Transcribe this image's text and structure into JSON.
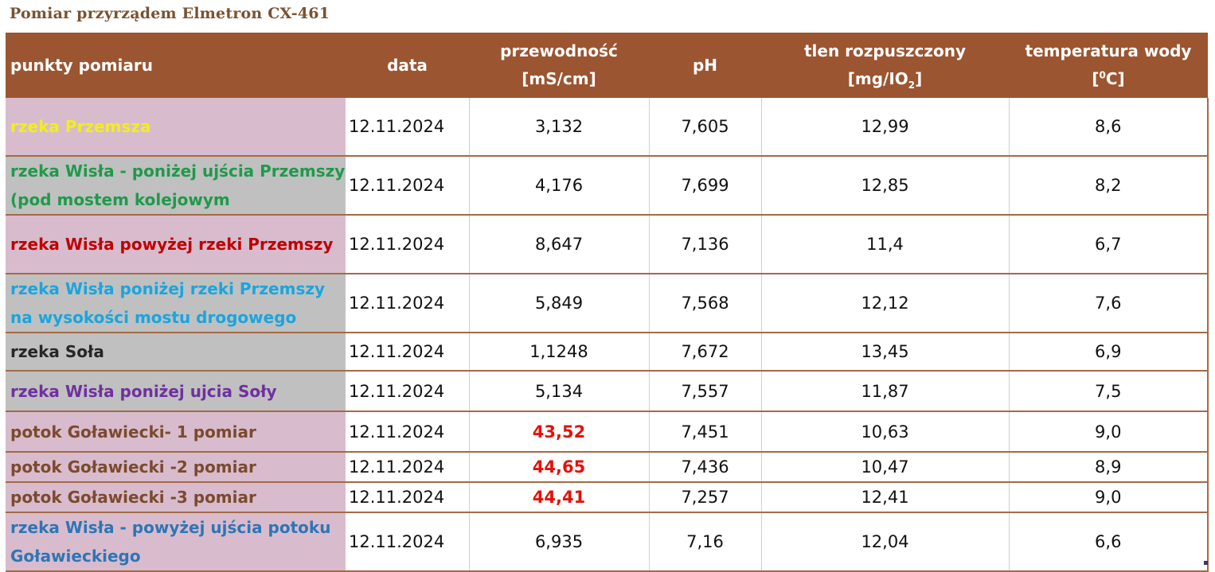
{
  "title": "Pomiar przyrządem Elmetron CX-461",
  "headers": {
    "point": "punkty pomiaru",
    "date": "data",
    "conductivity": "przewodność",
    "conductivity_unit": "[mS/cm]",
    "ph": "pH",
    "oxygen": "tlen rozpuszczony",
    "oxygen_unit_pre": "[mg/IO",
    "oxygen_unit_sub": "2",
    "oxygen_unit_post": "]",
    "temp": "temperatura wody",
    "temp_unit_pre": "[",
    "temp_unit_sup": "0",
    "temp_unit_post": "C]"
  },
  "rows": [
    {
      "name": "rzeka Przemsza",
      "name_color": "#f2ef1a",
      "bg": "#d8bccd",
      "date": "12.11.2024",
      "conductivity": "3,132",
      "highlight": false,
      "ph": "7,605",
      "oxygen": "12,99",
      "temp": "8,6"
    },
    {
      "name": "rzeka Wisła - poniżej ujścia Przemszy (pod mostem kolejowym",
      "name_color": "#1f9a4a",
      "bg": "#c0c0c0",
      "date": "12.11.2024",
      "conductivity": "4,176",
      "highlight": false,
      "ph": "7,699",
      "oxygen": "12,85",
      "temp": "8,2"
    },
    {
      "name": "rzeka Wisła powyżej rzeki Przemszy",
      "name_color": "#c00000",
      "bg": "#d8bccd",
      "date": "12.11.2024",
      "conductivity": "8,647",
      "highlight": false,
      "ph": "7,136",
      "oxygen": "11,4",
      "temp": "6,7"
    },
    {
      "name": "rzeka Wisła poniżej rzeki Przemszy na wysokości mostu drogowego",
      "name_color": "#1aa5de",
      "bg": "#c0c0c0",
      "date": "12.11.2024",
      "conductivity": "5,849",
      "highlight": false,
      "ph": "7,568",
      "oxygen": "12,12",
      "temp": "7,6"
    },
    {
      "name": "rzeka Soła",
      "name_color": "#262626",
      "bg": "#c0c0c0",
      "date": "12.11.2024",
      "conductivity": "1,1248",
      "highlight": false,
      "ph": "7,672",
      "oxygen": "13,45",
      "temp": "6,9"
    },
    {
      "name": "rzeka Wisła poniżej ujcia Soły",
      "name_color": "#7030a0",
      "bg": "#c0c0c0",
      "date": "12.11.2024",
      "conductivity": "5,134",
      "highlight": false,
      "ph": "7,557",
      "oxygen": "11,87",
      "temp": "7,5"
    },
    {
      "name": "potok Goławiecki- 1 pomiar",
      "name_color": "#7b4a2e",
      "bg": "#d8bccd",
      "date": "12.11.2024",
      "conductivity": "43,52",
      "highlight": true,
      "ph": "7,451",
      "oxygen": "10,63",
      "temp": "9,0"
    },
    {
      "name": "potok Goławiecki -2 pomiar",
      "name_color": "#7b4a2e",
      "bg": "#d8bccd",
      "date": "12.11.2024",
      "conductivity": "44,65",
      "highlight": true,
      "ph": "7,436",
      "oxygen": "10,47",
      "temp": "8,9"
    },
    {
      "name": "potok Goławiecki -3 pomiar",
      "name_color": "#7b4a2e",
      "bg": "#d8bccd",
      "date": "12.11.2024",
      "conductivity": "44,41",
      "highlight": true,
      "ph": "7,257",
      "oxygen": "12,41",
      "temp": "9,0"
    },
    {
      "name": "rzeka Wisła - powyżej ujścia potoku Goławieckiego",
      "name_color": "#2e75b6",
      "bg": "#d8bccd",
      "date": "12.11.2024",
      "conductivity": "6,935",
      "highlight": false,
      "ph": "7,16",
      "oxygen": "12,04",
      "temp": "6,6"
    }
  ]
}
